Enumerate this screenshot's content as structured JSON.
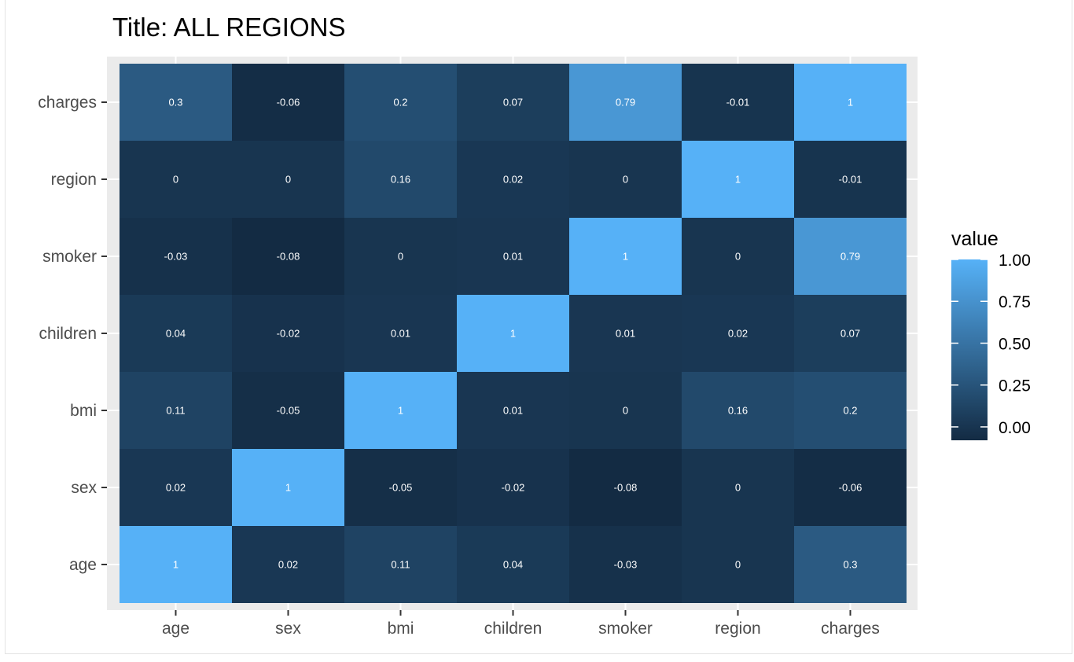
{
  "chart_data": {
    "type": "heatmap",
    "title": "Title: ALL REGIONS",
    "x_categories": [
      "age",
      "sex",
      "bmi",
      "children",
      "smoker",
      "region",
      "charges"
    ],
    "y_categories": [
      "age",
      "sex",
      "bmi",
      "children",
      "smoker",
      "region",
      "charges"
    ],
    "values": [
      [
        1,
        0.02,
        0.11,
        0.04,
        -0.03,
        0,
        0.3
      ],
      [
        0.02,
        1,
        -0.05,
        -0.02,
        -0.08,
        0,
        -0.06
      ],
      [
        0.11,
        -0.05,
        1,
        0.01,
        0,
        0.16,
        0.2
      ],
      [
        0.04,
        -0.02,
        0.01,
        1,
        0.01,
        0.02,
        0.07
      ],
      [
        -0.03,
        -0.08,
        0,
        0.01,
        1,
        0,
        0.79
      ],
      [
        0,
        0,
        0.16,
        0.02,
        0,
        1,
        -0.01
      ],
      [
        0.3,
        -0.06,
        0.2,
        0.07,
        0.79,
        -0.01,
        1
      ]
    ],
    "legend": {
      "title": "value",
      "ticks": [
        "1.00",
        "0.75",
        "0.50",
        "0.25",
        "0.00"
      ],
      "tick_values": [
        1,
        0.75,
        0.5,
        0.25,
        0
      ],
      "position": "right"
    },
    "color_low": "#132B43",
    "color_high": "#56B1F7",
    "value_range": [
      -0.08,
      1
    ],
    "panel_background": "#EBEBEB",
    "grid": true
  }
}
